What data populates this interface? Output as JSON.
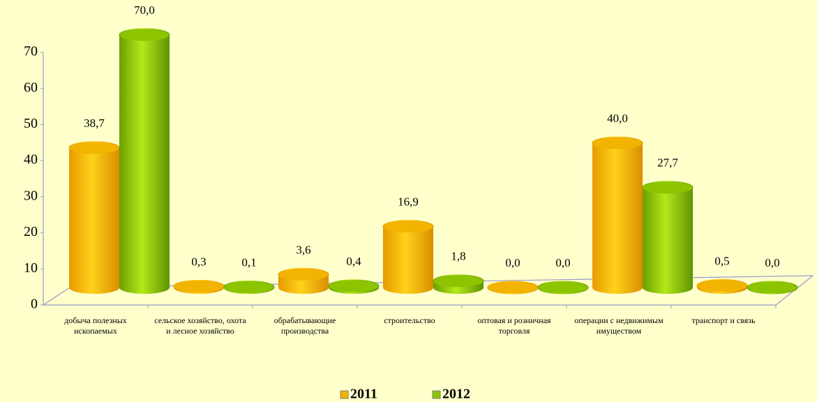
{
  "chart_data": {
    "type": "bar",
    "categories": [
      "добыча полезных ископаемых",
      "сельское хозяйство, охота и лесное хозяйство",
      "обрабатывающие производства",
      "строительство",
      "оптовая и розничная торговля",
      "операции с недвижимым имуществом",
      "транспорт и связь"
    ],
    "series": [
      {
        "name": "2011",
        "color": "#f2b400",
        "values": [
          38.7,
          0.3,
          3.6,
          16.9,
          0.0,
          40.0,
          0.5
        ],
        "value_labels": [
          "38,7",
          "0,3",
          "3,6",
          "16,9",
          "0,0",
          "40,0",
          "0,5"
        ]
      },
      {
        "name": "2012",
        "color": "#8cc400",
        "values": [
          70.0,
          0.1,
          0.4,
          1.8,
          0.0,
          27.7,
          0.0
        ],
        "value_labels": [
          "70,0",
          "0,1",
          "0,4",
          "1,8",
          "0,0",
          "27,7",
          "0,0"
        ]
      }
    ],
    "ylim": [
      0,
      70
    ],
    "yticks": [
      0,
      10,
      20,
      30,
      40,
      50,
      60,
      70
    ],
    "legend": "bottom"
  }
}
